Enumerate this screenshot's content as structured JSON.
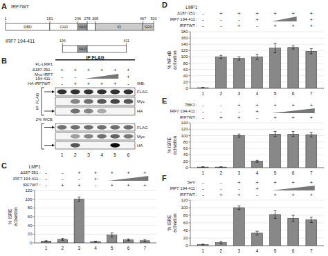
{
  "chart_data": [
    {
      "type": "domain_map",
      "title": "A",
      "series": [
        {
          "name": "IRF7WT",
          "domains": [
            {
              "start": 1,
              "end": 151,
              "label": "DBD",
              "color": "#ffffff"
            },
            {
              "start": 151,
              "end": 246,
              "label": "CAD",
              "color": "#ffffff"
            },
            {
              "start": 246,
              "end": 278,
              "label": "VAD",
              "color": "#999999"
            },
            {
              "start": 278,
              "end": 305,
              "color": "#ffffff"
            },
            {
              "start": 305,
              "end": 467,
              "label": "ID",
              "color": "#cccccc"
            },
            {
              "start": 467,
              "end": 503,
              "label": "SRD",
              "color": "#cccccc"
            }
          ],
          "ticks": [
            1,
            151,
            246,
            278,
            305,
            467,
            503
          ]
        },
        {
          "name": "IRF7 194-411",
          "domains": [
            {
              "start": 194,
              "end": 246,
              "color": "#ffffff"
            },
            {
              "start": 246,
              "end": 278,
              "label": "VAD",
              "color": "#999999"
            },
            {
              "start": 278,
              "end": 411,
              "color": "#ffffff"
            }
          ],
          "ticks": [
            194,
            411
          ]
        }
      ]
    },
    {
      "type": "blot",
      "title": "B",
      "subtitle": "IP:FLAG",
      "conditions_title": "FL-LMP1",
      "conditions": [
        {
          "label": "Δ187-351 :",
          "signs": [
            "+",
            "+",
            "+",
            "+",
            "+",
            "+"
          ]
        },
        {
          "label": "Myc-IRF7\n194-411 :",
          "signs": [
            "-",
            "-",
            null,
            null,
            null,
            "+"
          ],
          "dose_ramp": true
        },
        {
          "label": "HA-IRF7WT :",
          "signs": [
            "-",
            "+",
            "+",
            "+",
            "+",
            "-"
          ]
        }
      ],
      "annotations": [
        "WB:"
      ],
      "groups": [
        {
          "label": "IP: FLAG",
          "blots": [
            {
              "label": "FLAG",
              "bands": [
                0.8,
                0.8,
                0.8,
                0.8,
                0.8,
                0.8
              ]
            },
            {
              "label": "Myc",
              "bands": [
                0,
                0.45,
                0.55,
                0.65,
                0.72,
                0.65
              ]
            },
            {
              "label": "HA",
              "bands": [
                0,
                0.55,
                0.45,
                0.3,
                0,
                0
              ]
            }
          ]
        },
        {
          "label": "2% WCE",
          "blots": [
            {
              "label": "FLAG",
              "bands": [
                0.55,
                0.55,
                0.55,
                0.55,
                0.55,
                0.55
              ]
            },
            {
              "label": "Myc",
              "bands": [
                0,
                0.35,
                0.45,
                0.55,
                0.6,
                0.5
              ]
            },
            {
              "label": "HA",
              "bands": [
                0,
                0.65,
                0,
                0,
                0.95,
                0
              ]
            }
          ]
        }
      ],
      "categories": [
        "1",
        "2",
        "3",
        "4",
        "5",
        "6"
      ]
    },
    {
      "type": "bar",
      "title": "C",
      "conditions_title": "LMP1",
      "conditions": [
        {
          "label": "Δ187-351 :",
          "signs": [
            "-",
            "-",
            "+",
            "+",
            "+",
            "+",
            "+"
          ]
        },
        {
          "label": "IRF7 194-411 :",
          "signs": [
            "-",
            "-",
            "-",
            "+",
            null,
            null,
            null
          ],
          "dose_ramp": true
        },
        {
          "label": "IRF7WT :",
          "signs": [
            "-",
            "+",
            "+",
            "-",
            "+",
            "+",
            "+"
          ]
        }
      ],
      "categories": [
        "1",
        "2",
        "3",
        "4",
        "5",
        "6",
        "7"
      ],
      "values": [
        4,
        8,
        100,
        3,
        18,
        7,
        5
      ],
      "errors": [
        1,
        2,
        5,
        1,
        5,
        2,
        2
      ],
      "color": "#888888",
      "ylabel": "% ISRE\nactivation",
      "ylim": [
        0,
        120
      ],
      "yticks": [
        0,
        20,
        40,
        60,
        80,
        100,
        120
      ],
      "grid": true
    },
    {
      "type": "bar",
      "title": "D",
      "conditions_title": "LMP1",
      "conditions": [
        {
          "label": "Δ187-351 :",
          "signs": [
            "-",
            "+",
            "+",
            "+",
            "+",
            "+",
            "+"
          ]
        },
        {
          "label": "IRF7 194-411 :",
          "signs": [
            "-",
            "-",
            "-",
            "+",
            null,
            null,
            "+"
          ],
          "dose_ramp": true
        },
        {
          "label": "IRF7WT :",
          "signs": [
            "-",
            "-",
            "+",
            "-",
            "+",
            "+",
            "+"
          ]
        }
      ],
      "categories": [
        "1",
        "2",
        "3",
        "4",
        "5",
        "6",
        "7"
      ],
      "values": [
        2,
        100,
        95,
        100,
        128,
        130,
        118
      ],
      "errors": [
        1,
        5,
        5,
        8,
        15,
        5,
        8
      ],
      "color": "#888888",
      "ylabel": "% NF-κB\nactivation",
      "ylim": [
        0,
        180
      ],
      "yticks": [
        0,
        20,
        40,
        60,
        80,
        100,
        120,
        140,
        160,
        180
      ],
      "grid": true
    },
    {
      "type": "bar",
      "title": "E",
      "conditions": [
        {
          "label": "TBK1 :",
          "signs": [
            "-",
            "-",
            "+",
            "+",
            "+",
            "+",
            "+"
          ]
        },
        {
          "label": "IRF7 194-411 :",
          "signs": [
            "-",
            "-",
            "-",
            "+",
            null,
            null,
            null
          ],
          "dose_ramp": true
        },
        {
          "label": "IRF7WT :",
          "signs": [
            "-",
            "+",
            "+",
            "-",
            "+",
            "+",
            "+"
          ]
        }
      ],
      "categories": [
        "1",
        "2",
        "3",
        "4",
        "5",
        "6",
        "7"
      ],
      "values": [
        2,
        2,
        100,
        20,
        105,
        105,
        103
      ],
      "errors": [
        1,
        1,
        5,
        3,
        8,
        8,
        7
      ],
      "color": "#888888",
      "ylabel": "% ISRE\nactivation",
      "ylim": [
        0,
        140
      ],
      "yticks": [
        0,
        20,
        40,
        60,
        80,
        100,
        120,
        140
      ],
      "grid": true
    },
    {
      "type": "bar",
      "title": "F",
      "conditions": [
        {
          "label": "SeV :",
          "signs": [
            "-",
            "-",
            "+",
            "+",
            "+",
            "+",
            "+"
          ]
        },
        {
          "label": "IRF7 194-411 :",
          "signs": [
            "-",
            "-",
            "-",
            "+",
            null,
            null,
            null
          ],
          "dose_ramp": true
        },
        {
          "label": "IRF7WT :",
          "signs": [
            "-",
            "+",
            "+",
            "-",
            "+",
            "+",
            "+"
          ]
        }
      ],
      "categories": [
        "1",
        "2",
        "3",
        "4",
        "5",
        "6",
        "7"
      ],
      "values": [
        3,
        8,
        100,
        33,
        82,
        72,
        68
      ],
      "errors": [
        1,
        3,
        5,
        5,
        10,
        8,
        7
      ],
      "color": "#888888",
      "ylabel": "% ISRE\nactivation",
      "ylim": [
        0,
        120
      ],
      "yticks": [
        0,
        20,
        40,
        60,
        80,
        100,
        120
      ],
      "grid": true
    }
  ]
}
